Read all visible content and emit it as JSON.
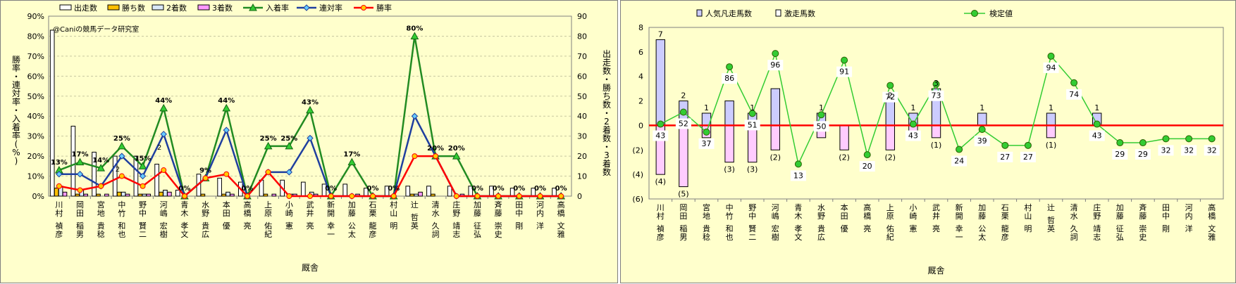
{
  "colors": {
    "plot_bg": "#ffffcc",
    "grid": "#c8c8a0",
    "runs_fill": "#ffffff",
    "wins_fill": "#ffc000",
    "seconds_fill": "#d9e8f8",
    "thirds_fill": "#ff99ff",
    "place_rate": "#228b22",
    "quinella_rate": "#1f3f9f",
    "win_rate": "#ff0000",
    "popular_fill": "#ccccff",
    "hard_fill": "#ffccff",
    "test_value": "#33cc33",
    "zero_line": "#ff0000"
  },
  "chart_data": [
    {
      "type": "bar",
      "watermark": "@Caniの競馬データ研究室",
      "xlabel": "厩舎",
      "ylabel_left": "勝率・連対率・入着率(%)",
      "ylabel_right": "出走数・勝ち数・2着数・3着数",
      "ylim_left": [
        0,
        90
      ],
      "ylim_right": [
        0,
        90
      ],
      "yticks_left": [
        "0%",
        "10%",
        "20%",
        "30%",
        "40%",
        "50%",
        "60%",
        "70%",
        "80%",
        "90%"
      ],
      "yticks_right": [
        "0",
        "10",
        "20",
        "30",
        "40",
        "50",
        "60",
        "70",
        "80",
        "90"
      ],
      "categories": [
        "川村 禎彦",
        "岡田 稲男",
        "宮地 貴稔",
        "中竹 和也",
        "野中 賢二",
        "河嶋 宏樹",
        "青木 孝文",
        "水野 貴広",
        "本田 優",
        "高橋 亮",
        "上原 佑紀",
        "小崎 憲",
        "武井 亮",
        "新開 幸一",
        "加藤 公太",
        "石栗 龍彦",
        "村山 明",
        "辻 哲英",
        "清水 久詞",
        "庄野 靖志",
        "加藤 征弘",
        "斉藤 崇史",
        "田中 剛",
        "河内 洋",
        "高橋 文雅"
      ],
      "series": [
        {
          "name": "出走数",
          "kind": "bar",
          "values": [
            83,
            35,
            22,
            20,
            20,
            16,
            3,
            11,
            9,
            7,
            8,
            8,
            7,
            6,
            6,
            4,
            5,
            5,
            5,
            5,
            5,
            5,
            4,
            4,
            4
          ]
        },
        {
          "name": "勝ち数",
          "kind": "bar",
          "values": [
            4,
            1,
            1,
            2,
            1,
            2,
            0,
            1,
            1,
            0,
            1,
            0,
            0,
            0,
            0,
            0,
            0,
            1,
            1,
            0,
            0,
            0,
            0,
            0,
            0
          ]
        },
        {
          "name": "2着数",
          "kind": "bar",
          "values": [
            5,
            3,
            0,
            2,
            1,
            3,
            0,
            0,
            2,
            0,
            0,
            1,
            2,
            0,
            0,
            0,
            0,
            1,
            0,
            0,
            0,
            0,
            0,
            0,
            0
          ]
        },
        {
          "name": "3着数",
          "kind": "bar",
          "values": [
            2,
            1,
            1,
            1,
            1,
            2,
            0,
            0,
            1,
            0,
            1,
            1,
            1,
            0,
            1,
            0,
            0,
            2,
            0,
            1,
            0,
            0,
            0,
            0,
            0
          ]
        },
        {
          "name": "入着率",
          "kind": "line",
          "values": [
            13,
            17,
            14,
            25,
            15,
            44,
            0,
            9,
            44,
            0,
            25,
            25,
            43,
            0,
            17,
            0,
            0,
            80,
            20,
            20,
            0,
            0,
            0,
            0,
            0
          ]
        },
        {
          "name": "連対率",
          "kind": "line",
          "values": [
            11,
            11,
            5,
            20,
            10,
            31,
            0,
            9,
            33,
            0,
            12,
            12,
            29,
            0,
            0,
            0,
            0,
            40,
            20,
            0,
            0,
            0,
            0,
            0,
            0
          ]
        },
        {
          "name": "勝率",
          "kind": "line",
          "values": [
            5,
            3,
            5,
            10,
            5,
            13,
            0,
            9,
            11,
            0,
            12,
            0,
            0,
            0,
            0,
            0,
            0,
            20,
            20,
            0,
            0,
            0,
            0,
            0,
            0
          ]
        }
      ],
      "data_labels": [
        "13%",
        "17%",
        "14%",
        "25%",
        "15%",
        "44%",
        "0%",
        "9%",
        "44%",
        "0%",
        "25%",
        "25%",
        "43%",
        "0%",
        "17%",
        "0%",
        "0%",
        "80%",
        "20%",
        "20%",
        "0%",
        "0%",
        "0%",
        "0%",
        "0%"
      ],
      "extra_labels": [
        {
          "index": 3,
          "text": "2"
        },
        {
          "index": 5,
          "text": "2"
        }
      ],
      "legend_position": "top"
    },
    {
      "type": "bar",
      "xlabel": "厩舎",
      "ylim": [
        -6,
        8
      ],
      "yticks": [
        "(6)",
        "(4)",
        "(2)",
        "0",
        "2",
        "4",
        "6",
        "8"
      ],
      "categories": [
        "川村 禎彦",
        "岡田 稲男",
        "宮地 貴稔",
        "中竹 和也",
        "野中 賢二",
        "河嶋 宏樹",
        "青木 孝文",
        "水野 貴広",
        "本田 優",
        "高橋 亮",
        "上原 佑紀",
        "小崎 憲",
        "武井 亮",
        "新開 幸一",
        "加藤 公太",
        "石栗 龍彦",
        "村山 明",
        "辻 哲英",
        "清水 久詞",
        "庄野 靖志",
        "加藤 征弘",
        "斉藤 崇史",
        "田中 剛",
        "河内 洋",
        "高橋 文雅"
      ],
      "series": [
        {
          "name": "人気凡走馬数",
          "kind": "bar",
          "values": [
            -4,
            -5,
            -1,
            -3,
            -3,
            -2,
            0,
            -1,
            -2,
            0,
            -2,
            -1,
            -1,
            0,
            0,
            0,
            0,
            -1,
            0,
            0,
            0,
            0,
            0,
            0,
            0
          ]
        },
        {
          "name": "激走馬数",
          "kind": "bar",
          "values": [
            7,
            2,
            1,
            2,
            1,
            3,
            0,
            1,
            0,
            0,
            2,
            1,
            3,
            0,
            1,
            0,
            0,
            1,
            0,
            1,
            0,
            0,
            0,
            0,
            0
          ]
        },
        {
          "name": "検定値",
          "kind": "line",
          "values": [
            43,
            52,
            37,
            86,
            51,
            96,
            13,
            50,
            91,
            20,
            72,
            43,
            73,
            24,
            39,
            27,
            27,
            94,
            74,
            43,
            29,
            29,
            32,
            32,
            32
          ]
        }
      ],
      "pos_labels": [
        {
          "index": 0,
          "text": "7"
        },
        {
          "index": 1,
          "text": "2"
        },
        {
          "index": 2,
          "text": "1"
        },
        {
          "index": 4,
          "text": "1"
        },
        {
          "index": 7,
          "text": "1"
        },
        {
          "index": 10,
          "text": "2"
        },
        {
          "index": 11,
          "text": "1"
        },
        {
          "index": 12,
          "text": "3"
        },
        {
          "index": 14,
          "text": "1"
        },
        {
          "index": 17,
          "text": "1"
        },
        {
          "index": 19,
          "text": "1"
        }
      ],
      "neg_labels": [
        {
          "index": 0,
          "text": "(4)"
        },
        {
          "index": 1,
          "text": "(5)"
        },
        {
          "index": 3,
          "text": "(3)"
        },
        {
          "index": 4,
          "text": "(3)"
        },
        {
          "index": 5,
          "text": "(2)"
        },
        {
          "index": 8,
          "text": "(2)"
        },
        {
          "index": 10,
          "text": "(2)"
        },
        {
          "index": 12,
          "text": "(1)"
        },
        {
          "index": 17,
          "text": "(1)"
        }
      ],
      "legend_position": "top"
    }
  ]
}
